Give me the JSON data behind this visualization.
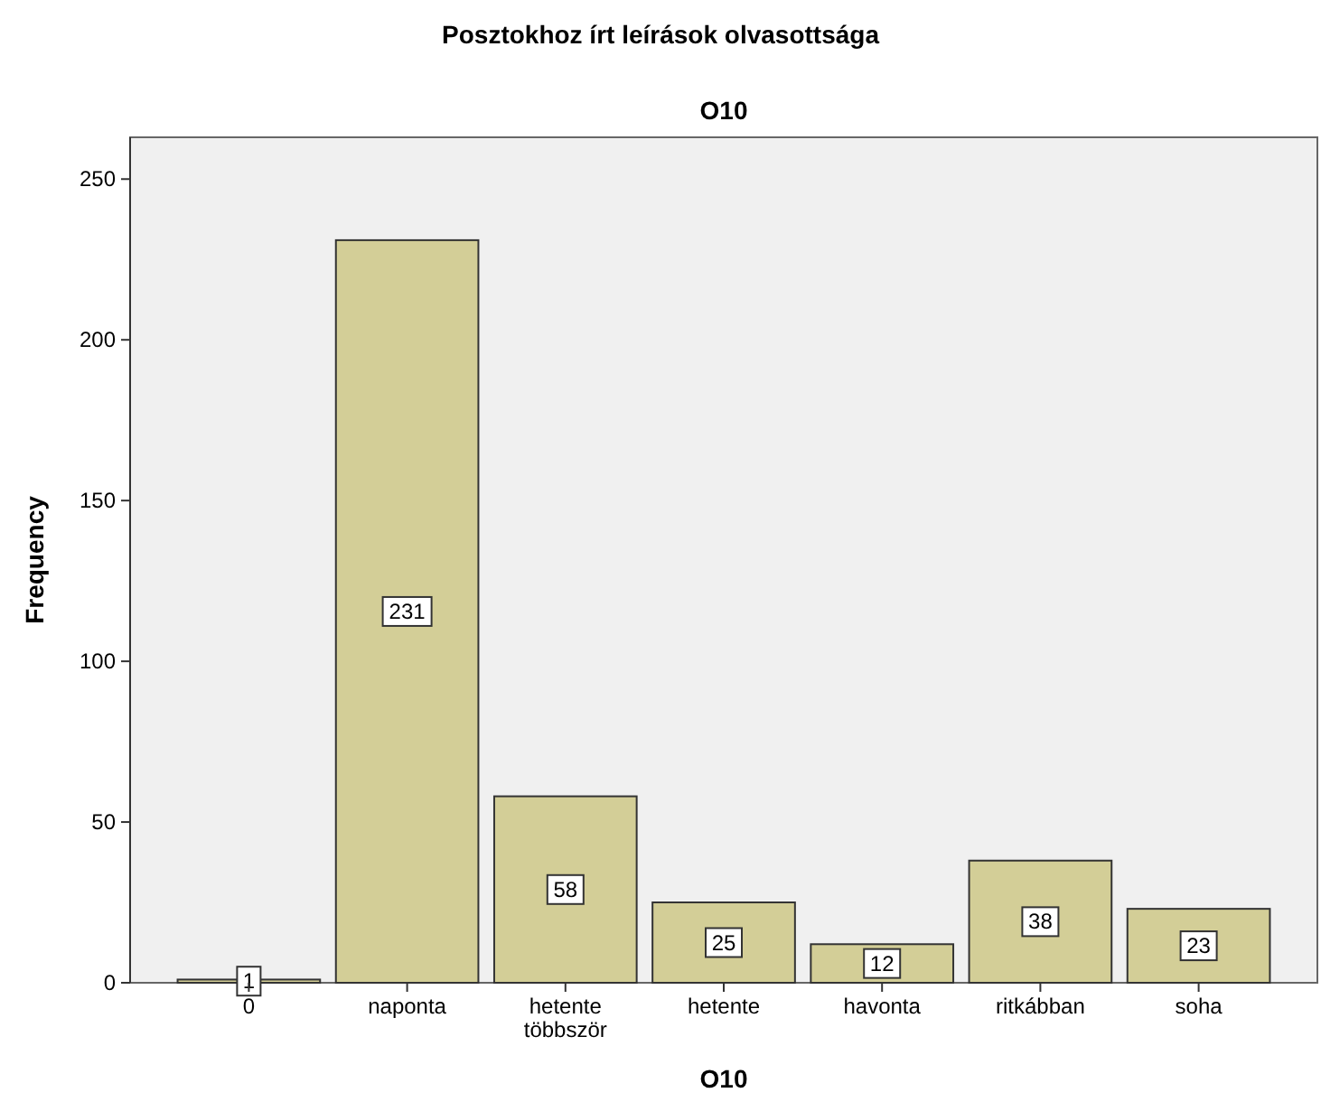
{
  "chart_data": {
    "type": "bar",
    "title": "Posztokhoz írt leírások olvasottsága",
    "subtitle": "O10",
    "xlabel": "O10",
    "ylabel": "Frequency",
    "categories": [
      "0",
      "naponta",
      "hetente többször",
      "hetente",
      "havonta",
      "ritkábban",
      "soha"
    ],
    "values": [
      1,
      231,
      58,
      25,
      12,
      38,
      23
    ],
    "color": "#d3ce97",
    "ylim": [
      0,
      263
    ],
    "yticks": [
      0,
      50,
      100,
      150,
      200,
      250
    ],
    "data_labels": true
  }
}
